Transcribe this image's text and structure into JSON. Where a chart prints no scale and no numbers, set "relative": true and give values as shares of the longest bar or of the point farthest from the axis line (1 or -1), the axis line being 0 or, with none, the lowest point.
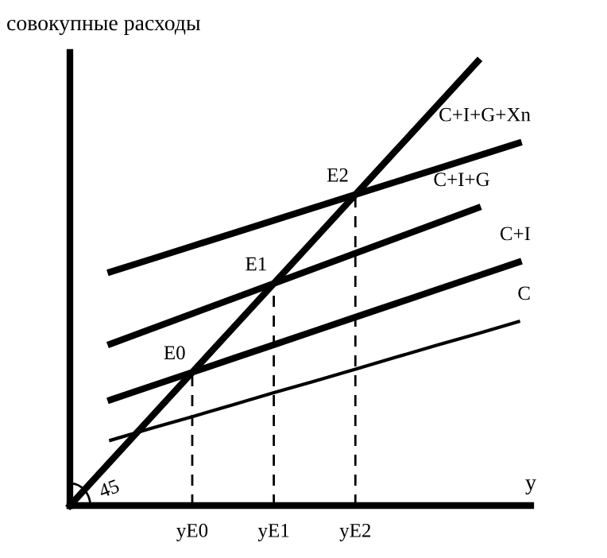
{
  "chart_data": {
    "type": "line",
    "relative": true,
    "ylabel": "совокупные расходы",
    "xlabel": "y",
    "legend": false,
    "tick_labels": "x",
    "marker": "none",
    "categories": [
      null,
      null,
      null,
      "yE0",
      null,
      "yE1",
      null,
      "yE2",
      null,
      null,
      null,
      null
    ],
    "series": [
      {
        "color": "#000000",
        "values": [
          0,
          0.1,
          0.2,
          0.3,
          0.4,
          0.5,
          0.6,
          0.7,
          0.8,
          0.9,
          1.0,
          null
        ]
      },
      {
        "name": "C",
        "color": "#000000",
        "values": [
          null,
          0.147,
          0.174,
          0.2,
          0.227,
          0.254,
          0.28,
          0.307,
          0.334,
          0.361,
          0.387,
          0.414
        ]
      },
      {
        "name": "C+I",
        "color": "#000000",
        "values": [
          null,
          0.238,
          0.269,
          0.3,
          0.331,
          0.362,
          0.393,
          0.424,
          0.455,
          0.486,
          0.517,
          0.548
        ]
      },
      {
        "name": "C+I+G",
        "color": "#000000",
        "values": [
          null,
          0.364,
          0.398,
          0.432,
          0.466,
          0.5,
          0.534,
          0.568,
          0.602,
          0.636,
          0.67,
          null
        ]
      },
      {
        "name": "C+I+G+Xn",
        "color": "#000000",
        "values": [
          null,
          0.526,
          0.555,
          0.584,
          0.613,
          0.642,
          0.671,
          0.7,
          0.729,
          0.758,
          0.787,
          0.816
        ]
      }
    ],
    "ref_lines": [
      {
        "axis": "x",
        "value": "yE0",
        "line_style": "dashed"
      },
      {
        "axis": "x",
        "value": "yE1",
        "line_style": "dashed"
      },
      {
        "axis": "x",
        "value": "yE2",
        "line_style": "dashed"
      }
    ],
    "annotations": [
      {
        "text": "E0",
        "x": "yE0",
        "y": 0.3
      },
      {
        "text": "E1",
        "x": "yE1",
        "y": 0.5
      },
      {
        "text": "E2",
        "x": "yE2",
        "y": 0.7
      },
      "45"
    ]
  }
}
